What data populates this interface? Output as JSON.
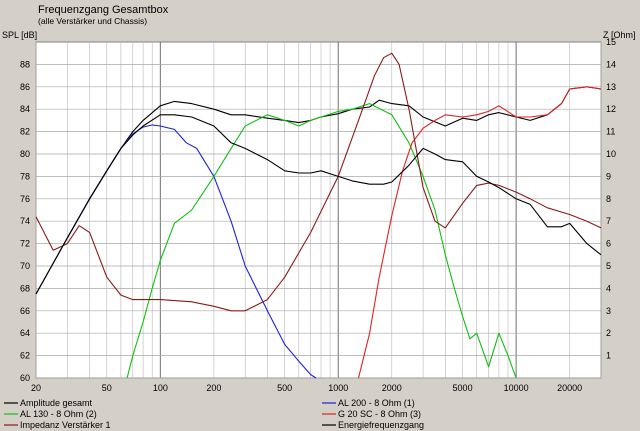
{
  "chart_data": {
    "type": "line",
    "title": "Frequenzgang Gesamtbox",
    "subtitle": "(alle Verstärker und Chassis)",
    "ylabel": "SPL [dB]",
    "y2label": "Z [Ohm]",
    "xscale": "log",
    "xlim": [
      20,
      30000
    ],
    "ylim": [
      60,
      90
    ],
    "y2lim": [
      0,
      15
    ],
    "grid": true,
    "x_ticks": [
      20,
      50,
      100,
      200,
      500,
      1000,
      2000,
      5000,
      10000,
      20000
    ],
    "x_tick_labels": [
      "20",
      "50",
      "100",
      "200",
      "500",
      "1000",
      "2000",
      "5000",
      "10000",
      "20000"
    ],
    "y_ticks": [
      60,
      62,
      64,
      66,
      68,
      70,
      72,
      74,
      76,
      78,
      80,
      82,
      84,
      86,
      88
    ],
    "y2_ticks": [
      1,
      2,
      3,
      4,
      5,
      6,
      7,
      8,
      9,
      10,
      11,
      12,
      13,
      14,
      15
    ],
    "legend_position": "bottom",
    "series": [
      {
        "name": "Amplitude gesamt",
        "axis": "left",
        "color": "#000000",
        "x": [
          20,
          30,
          40,
          50,
          60,
          70,
          80,
          100,
          120,
          150,
          200,
          250,
          300,
          400,
          500,
          600,
          700,
          800,
          1000,
          1200,
          1500,
          1700,
          2000,
          2500,
          3000,
          4000,
          5000,
          6000,
          7000,
          8000,
          10000,
          12000,
          15000,
          18000,
          20000,
          25000,
          30000
        ],
        "y": [
          67.5,
          72.5,
          76,
          78.5,
          80.5,
          82,
          83,
          84.3,
          84.7,
          84.5,
          84,
          83.5,
          83.5,
          83.2,
          83,
          82.8,
          83,
          83.3,
          83.6,
          84,
          84.2,
          84.8,
          84.5,
          84.3,
          83.3,
          82.5,
          83.2,
          83,
          83.5,
          83.7,
          83.3,
          83,
          83.5,
          84.5,
          85.8,
          86,
          85.8
        ]
      },
      {
        "name": "AL 200 - 8 Ohm (1)",
        "axis": "left",
        "color": "#2020e0",
        "x": [
          30,
          40,
          50,
          60,
          70,
          80,
          90,
          100,
          120,
          140,
          160,
          200,
          250,
          300,
          400,
          500,
          600,
          700,
          750
        ],
        "y": [
          72.5,
          76,
          78.5,
          80.5,
          81.8,
          82.4,
          82.6,
          82.5,
          82.2,
          81,
          80.5,
          78,
          74,
          70,
          66,
          63,
          61.5,
          60.3,
          60
        ]
      },
      {
        "name": "AL 130 - 8 Ohm (2)",
        "axis": "left",
        "color": "#10c010",
        "x": [
          65,
          70,
          80,
          90,
          100,
          120,
          150,
          200,
          250,
          300,
          400,
          500,
          600,
          700,
          800,
          1000,
          1200,
          1500,
          2000,
          2500,
          3000,
          3500,
          4000,
          4500,
          5000,
          5500,
          6000,
          7000,
          8000,
          9000,
          10000
        ],
        "y": [
          60,
          62,
          65,
          68,
          70.5,
          73.8,
          75,
          78,
          80.5,
          82.5,
          83.5,
          83,
          82.5,
          83,
          83.3,
          83.8,
          84,
          84.5,
          83.5,
          81,
          78,
          75,
          71,
          68,
          65.5,
          63.5,
          64,
          61,
          64,
          62,
          60
        ]
      },
      {
        "name": "G 20 SC - 8 Ohm (3)",
        "axis": "left",
        "color": "#e02020",
        "x": [
          1300,
          1500,
          1700,
          2000,
          2300,
          2600,
          3000,
          3500,
          4000,
          5000,
          6000,
          7000,
          8000,
          10000,
          12000,
          15000,
          18000,
          20000,
          25000,
          30000
        ],
        "y": [
          60,
          64,
          69,
          74.5,
          78.5,
          81,
          82.3,
          83,
          83.5,
          83.3,
          83.5,
          83.8,
          84.3,
          83.3,
          83.3,
          83.5,
          84.5,
          85.8,
          86,
          85.8
        ]
      },
      {
        "name": "Impedanz Verstärker 1",
        "axis": "right",
        "color": "#8b1a1a",
        "x": [
          20,
          25,
          30,
          35,
          40,
          50,
          60,
          70,
          80,
          100,
          150,
          200,
          250,
          300,
          400,
          500,
          700,
          1000,
          1300,
          1600,
          1800,
          2000,
          2200,
          2500,
          3000,
          3500,
          4000,
          5000,
          6000,
          7000,
          8000,
          10000,
          12000,
          15000,
          20000,
          25000,
          30000
        ],
        "y": [
          7.2,
          5.7,
          6,
          6.8,
          6.5,
          4.5,
          3.7,
          3.5,
          3.5,
          3.5,
          3.4,
          3.2,
          3,
          3,
          3.5,
          4.5,
          6.5,
          9,
          11.5,
          13.5,
          14.3,
          14.5,
          14,
          12,
          8.5,
          7,
          6.7,
          7.8,
          8.6,
          8.7,
          8.6,
          8.3,
          8,
          7.6,
          7.3,
          7,
          6.7
        ]
      },
      {
        "name": "Energiefrequenzgang",
        "axis": "left",
        "color": "#000000",
        "x": [
          20,
          30,
          40,
          50,
          60,
          70,
          80,
          100,
          120,
          150,
          200,
          250,
          300,
          400,
          500,
          600,
          700,
          800,
          1000,
          1200,
          1500,
          1800,
          2000,
          2500,
          3000,
          3500,
          4000,
          5000,
          6000,
          7000,
          8000,
          10000,
          12000,
          15000,
          18000,
          20000,
          25000,
          30000
        ],
        "y": [
          67.5,
          72.5,
          76,
          78.5,
          80.5,
          81.7,
          82.5,
          83.5,
          83.5,
          83.3,
          82.5,
          81,
          80.5,
          79.5,
          78.5,
          78.3,
          78.3,
          78.5,
          78,
          77.6,
          77.3,
          77.3,
          77.5,
          79,
          80.5,
          80,
          79.5,
          79.3,
          78,
          77.5,
          77,
          76,
          75.5,
          73.5,
          73.5,
          73.8,
          72,
          71
        ]
      }
    ]
  }
}
